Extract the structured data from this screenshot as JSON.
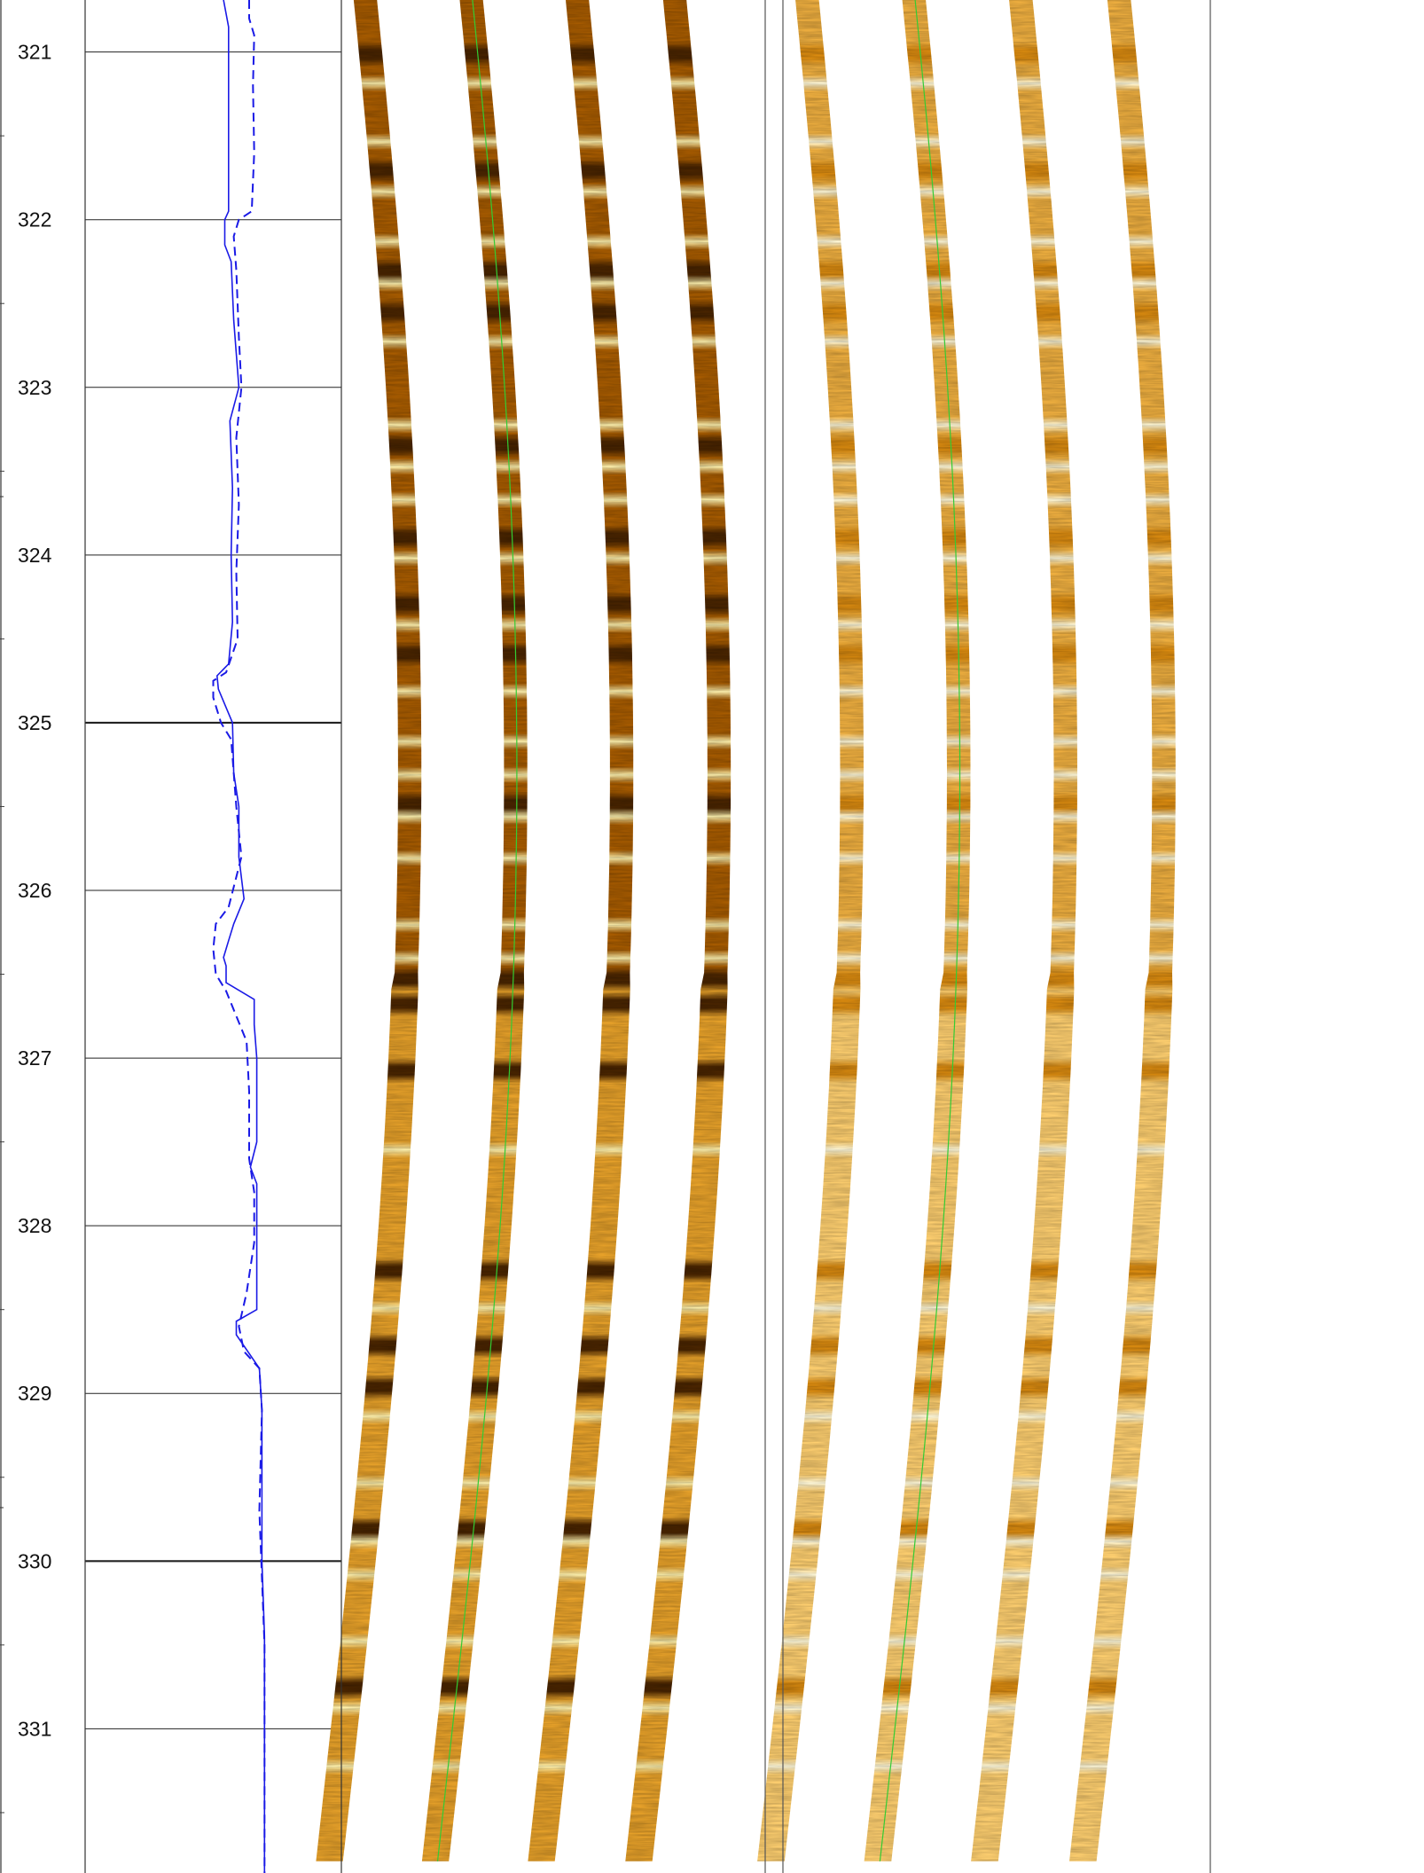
{
  "depth_track": {
    "labels": [
      "321",
      "322",
      "323",
      "324",
      "325",
      "326",
      "327",
      "328",
      "329",
      "330",
      "331"
    ],
    "top_depth": 320.69,
    "bottom_depth": 331.86,
    "major_every": 5
  },
  "curves": {
    "solid_color": "#1a1ae6",
    "dashed_color": "#1a1ae6",
    "solid": [
      [
        320.69,
        0.54
      ],
      [
        320.85,
        0.56
      ],
      [
        321.2,
        0.56
      ],
      [
        321.6,
        0.56
      ],
      [
        321.95,
        0.56
      ],
      [
        322.0,
        0.545
      ],
      [
        322.15,
        0.545
      ],
      [
        322.25,
        0.57
      ],
      [
        322.6,
        0.58
      ],
      [
        323.0,
        0.6
      ],
      [
        323.2,
        0.565
      ],
      [
        323.6,
        0.575
      ],
      [
        324.0,
        0.57
      ],
      [
        324.4,
        0.575
      ],
      [
        324.65,
        0.56
      ],
      [
        324.72,
        0.515
      ],
      [
        324.8,
        0.52
      ],
      [
        325.0,
        0.575
      ],
      [
        325.3,
        0.58
      ],
      [
        325.5,
        0.6
      ],
      [
        325.8,
        0.6
      ],
      [
        326.05,
        0.62
      ],
      [
        326.2,
        0.58
      ],
      [
        326.3,
        0.56
      ],
      [
        326.4,
        0.54
      ],
      [
        326.45,
        0.55
      ],
      [
        326.55,
        0.55
      ],
      [
        326.65,
        0.66
      ],
      [
        326.8,
        0.66
      ],
      [
        327.0,
        0.67
      ],
      [
        327.5,
        0.67
      ],
      [
        327.65,
        0.645
      ],
      [
        327.75,
        0.67
      ],
      [
        328.0,
        0.67
      ],
      [
        328.5,
        0.67
      ],
      [
        328.57,
        0.59
      ],
      [
        328.65,
        0.59
      ],
      [
        328.85,
        0.68
      ],
      [
        329.1,
        0.69
      ],
      [
        329.5,
        0.69
      ],
      [
        330.0,
        0.69
      ],
      [
        330.45,
        0.7
      ],
      [
        330.9,
        0.7
      ],
      [
        331.5,
        0.7
      ],
      [
        331.86,
        0.7
      ]
    ],
    "dashed": [
      [
        320.69,
        0.64
      ],
      [
        320.8,
        0.64
      ],
      [
        320.9,
        0.66
      ],
      [
        321.2,
        0.655
      ],
      [
        321.6,
        0.66
      ],
      [
        321.95,
        0.65
      ],
      [
        322.0,
        0.6
      ],
      [
        322.1,
        0.58
      ],
      [
        322.3,
        0.59
      ],
      [
        322.7,
        0.6
      ],
      [
        323.0,
        0.61
      ],
      [
        323.3,
        0.59
      ],
      [
        323.7,
        0.6
      ],
      [
        324.1,
        0.59
      ],
      [
        324.5,
        0.595
      ],
      [
        324.7,
        0.55
      ],
      [
        324.75,
        0.5
      ],
      [
        324.85,
        0.5
      ],
      [
        325.0,
        0.53
      ],
      [
        325.1,
        0.57
      ],
      [
        325.5,
        0.59
      ],
      [
        325.8,
        0.61
      ],
      [
        326.1,
        0.56
      ],
      [
        326.2,
        0.51
      ],
      [
        326.35,
        0.5
      ],
      [
        326.5,
        0.51
      ],
      [
        326.6,
        0.55
      ],
      [
        326.9,
        0.63
      ],
      [
        327.2,
        0.64
      ],
      [
        327.6,
        0.64
      ],
      [
        327.8,
        0.66
      ],
      [
        328.1,
        0.66
      ],
      [
        328.4,
        0.63
      ],
      [
        328.6,
        0.6
      ],
      [
        328.75,
        0.62
      ],
      [
        328.85,
        0.68
      ],
      [
        329.1,
        0.69
      ],
      [
        329.7,
        0.68
      ],
      [
        330.1,
        0.69
      ],
      [
        330.5,
        0.7
      ],
      [
        331.0,
        0.7
      ],
      [
        331.86,
        0.7
      ]
    ]
  },
  "image_panels": [
    {
      "name": "dynamic-image",
      "dark": "#4a2500",
      "mid": "#a85c00",
      "light": "#e8a22a",
      "bright": "#fff3b0",
      "trace_color": "#33cc33"
    },
    {
      "name": "static-image",
      "dark": "#d98a10",
      "mid": "#f0b040",
      "light": "#ffd070",
      "bright": "#fffadc",
      "trace_color": "#33cc33"
    }
  ],
  "bright_bands": [
    321.2,
    321.55,
    321.85,
    322.15,
    322.4,
    322.75,
    323.25,
    323.5,
    323.7,
    324.05,
    324.45,
    324.85,
    325.15,
    325.35,
    325.6,
    325.85,
    326.25,
    326.45,
    327.6,
    328.55,
    329.2,
    329.6,
    329.95,
    330.15,
    330.55,
    330.95,
    331.3
  ],
  "dark_bands": [
    321.0,
    321.7,
    322.3,
    322.55,
    323.35,
    323.9,
    324.3,
    324.6,
    325.5,
    326.55,
    326.7,
    327.1,
    328.3,
    328.75,
    329.0,
    329.85,
    330.8
  ]
}
